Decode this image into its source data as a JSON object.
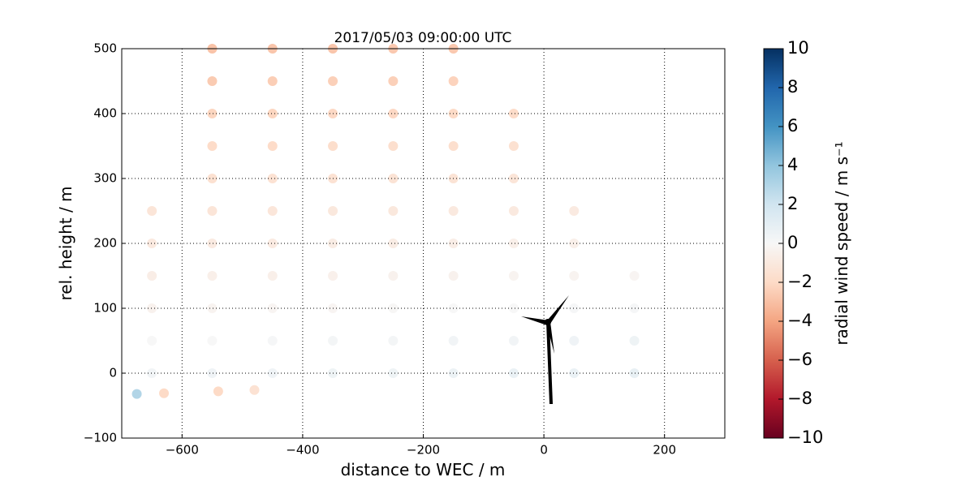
{
  "chart_data": {
    "type": "scatter",
    "title": "2017/05/03 09:00:00 UTC",
    "x_label": "distance to WEC / m",
    "y_label": "rel. height / m",
    "xlim": [
      -700,
      300
    ],
    "ylim": [
      -100,
      500
    ],
    "xticks": [
      {
        "value": -600,
        "label": "−600"
      },
      {
        "value": -400,
        "label": "−400"
      },
      {
        "value": -200,
        "label": "−200"
      },
      0,
      200
    ],
    "yticks": [
      {
        "value": -100,
        "label": "−100"
      },
      0,
      100,
      200,
      300,
      400,
      500
    ],
    "grid": true,
    "colorbar": {
      "label": "radial wind speed / m s⁻¹",
      "lim": [
        -10,
        10
      ],
      "ticks": [
        {
          "value": -10,
          "label": "−10"
        },
        {
          "value": -8,
          "label": "−8"
        },
        {
          "value": -6,
          "label": "−6"
        },
        {
          "value": -4,
          "label": "−4"
        },
        {
          "value": -2,
          "label": "−2"
        },
        0,
        2,
        4,
        6,
        8,
        10
      ],
      "colormap": [
        "#67001f",
        "#b2182b",
        "#d6604d",
        "#f4a582",
        "#fddbc7",
        "#f7f7f7",
        "#d1e5f0",
        "#92c5de",
        "#4393c3",
        "#2166ac",
        "#053061"
      ]
    },
    "x": [
      -550,
      -450,
      -350,
      -250,
      -150,
      -550,
      -450,
      -350,
      -250,
      -150,
      -550,
      -450,
      -350,
      -250,
      -150,
      -50,
      -550,
      -450,
      -350,
      -250,
      -150,
      -50,
      -550,
      -450,
      -350,
      -250,
      -150,
      -50,
      -650,
      -550,
      -450,
      -350,
      -250,
      -150,
      -50,
      50,
      -650,
      -550,
      -450,
      -350,
      -250,
      -150,
      -50,
      50,
      -650,
      -550,
      -450,
      -350,
      -250,
      -150,
      -50,
      50,
      150,
      -650,
      -550,
      -450,
      -350,
      -250,
      -150,
      -50,
      50,
      150,
      -650,
      -550,
      -450,
      -350,
      -250,
      -150,
      -50,
      50,
      150,
      -650,
      -550,
      -450,
      -350,
      -250,
      -150,
      -50,
      50,
      150,
      -675,
      -630,
      -540,
      -480
    ],
    "y": [
      500,
      500,
      500,
      500,
      500,
      450,
      450,
      450,
      450,
      450,
      400,
      400,
      400,
      400,
      400,
      400,
      350,
      350,
      350,
      350,
      350,
      350,
      300,
      300,
      300,
      300,
      300,
      300,
      250,
      250,
      250,
      250,
      250,
      250,
      250,
      250,
      200,
      200,
      200,
      200,
      200,
      200,
      200,
      200,
      150,
      150,
      150,
      150,
      150,
      150,
      150,
      150,
      150,
      100,
      100,
      100,
      100,
      100,
      100,
      100,
      100,
      100,
      50,
      50,
      50,
      50,
      50,
      50,
      50,
      50,
      50,
      0,
      0,
      0,
      0,
      0,
      0,
      0,
      0,
      0,
      -32,
      -31,
      -28,
      -26
    ],
    "values": [
      -2.9,
      -2.8,
      -2.8,
      -2.7,
      -2.7,
      -2.6,
      -2.5,
      -2.4,
      -2.4,
      -2.3,
      -2.2,
      -2.2,
      -2.1,
      -2.1,
      -2.0,
      -1.9,
      -1.9,
      -1.9,
      -1.8,
      -1.7,
      -1.7,
      -1.6,
      -1.6,
      -1.5,
      -1.5,
      -1.4,
      -1.4,
      -1.3,
      -1.3,
      -1.3,
      -1.2,
      -1.1,
      -1.1,
      -1.0,
      -1.0,
      -0.9,
      -1.0,
      -0.9,
      -0.9,
      -0.8,
      -0.8,
      -0.7,
      -0.6,
      -0.6,
      -0.7,
      -0.6,
      -0.6,
      -0.5,
      -0.4,
      -0.4,
      -0.3,
      -0.3,
      -0.2,
      -0.4,
      -0.3,
      -0.2,
      -0.2,
      -0.1,
      0.0,
      0.0,
      0.1,
      0.1,
      0.0,
      0.0,
      0.1,
      0.2,
      0.2,
      0.3,
      0.3,
      0.4,
      0.5,
      0.3,
      0.4,
      0.4,
      0.5,
      0.5,
      0.6,
      0.7,
      0.7,
      0.8,
      3,
      -2,
      -2,
      -1.5
    ]
  }
}
